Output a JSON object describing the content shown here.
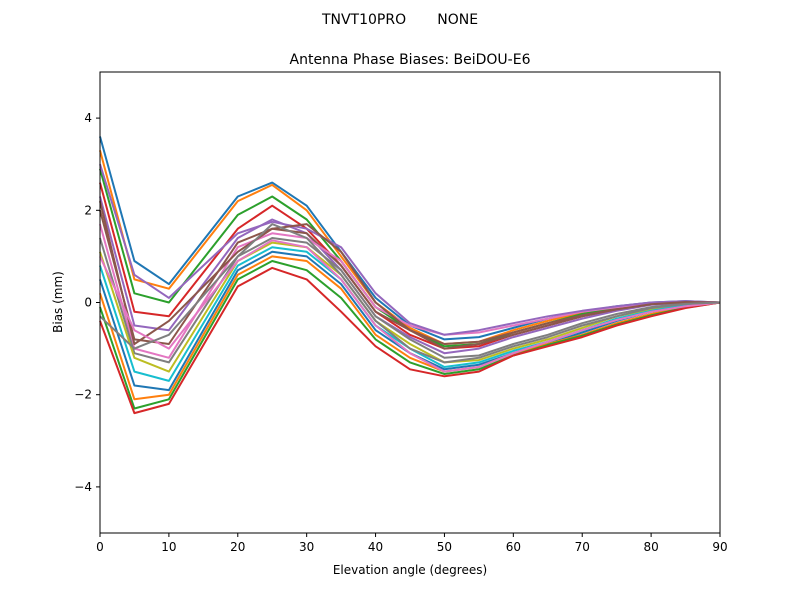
{
  "chart_data": {
    "type": "line",
    "suptitle": "TNVT10PRO       NONE",
    "title": "Antenna Phase Biases: BeiDOU-E6",
    "xlabel": "Elevation angle (degrees)",
    "ylabel": "Bias (mm)",
    "xlim": [
      0,
      90
    ],
    "ylim": [
      -5,
      5
    ],
    "xticks": [
      0,
      10,
      20,
      30,
      40,
      50,
      60,
      70,
      80,
      90
    ],
    "yticks": [
      -4,
      -2,
      0,
      2,
      4
    ],
    "ytick_labels": [
      "−4",
      "−2",
      "0",
      "2",
      "4"
    ],
    "grid": false,
    "colors": [
      "#1f77b4",
      "#ff7f0e",
      "#2ca02c",
      "#d62728",
      "#9467bd",
      "#8c564b",
      "#e377c2",
      "#7f7f7f",
      "#bcbd22",
      "#17becf"
    ],
    "x": [
      0,
      5,
      10,
      20,
      25,
      30,
      35,
      40,
      45,
      50,
      55,
      60,
      65,
      70,
      75,
      80,
      85,
      90
    ],
    "series": [
      {
        "values": [
          3.6,
          0.9,
          0.4,
          2.3,
          2.6,
          2.1,
          1.1,
          0.1,
          -0.5,
          -0.8,
          -0.75,
          -0.55,
          -0.35,
          -0.2,
          -0.08,
          0.0,
          0.03,
          0
        ]
      },
      {
        "values": [
          3.3,
          0.5,
          0.3,
          2.2,
          2.55,
          2.0,
          1.0,
          0.0,
          -0.55,
          -0.9,
          -0.85,
          -0.6,
          -0.4,
          -0.22,
          -0.1,
          -0.01,
          0.02,
          0
        ]
      },
      {
        "values": [
          2.9,
          0.2,
          0.0,
          1.9,
          2.3,
          1.8,
          0.9,
          -0.1,
          -0.6,
          -0.95,
          -0.9,
          -0.65,
          -0.45,
          -0.25,
          -0.12,
          -0.02,
          0.02,
          0
        ]
      },
      {
        "values": [
          2.6,
          -0.2,
          -0.3,
          1.6,
          2.1,
          1.6,
          0.8,
          -0.2,
          -0.7,
          -1.0,
          -0.95,
          -0.7,
          -0.5,
          -0.3,
          -0.15,
          -0.03,
          0.01,
          0
        ]
      },
      {
        "values": [
          2.3,
          -0.5,
          -0.6,
          1.4,
          1.8,
          1.5,
          0.7,
          -0.3,
          -0.75,
          -1.1,
          -1.0,
          -0.75,
          -0.55,
          -0.35,
          -0.18,
          -0.05,
          0.0,
          0
        ]
      },
      {
        "values": [
          2.0,
          -0.8,
          -0.9,
          1.3,
          1.6,
          1.5,
          0.8,
          -0.2,
          -0.6,
          -0.9,
          -0.85,
          -0.65,
          -0.45,
          -0.28,
          -0.14,
          -0.03,
          0.01,
          0
        ]
      },
      {
        "values": [
          1.7,
          -1.0,
          -1.2,
          1.2,
          1.5,
          1.4,
          0.9,
          -0.1,
          -0.5,
          -0.7,
          -0.65,
          -0.5,
          -0.35,
          -0.2,
          -0.1,
          -0.02,
          0.02,
          0
        ]
      },
      {
        "values": [
          1.4,
          -1.1,
          -1.3,
          1.0,
          1.4,
          1.3,
          0.7,
          -0.3,
          -0.8,
          -1.2,
          -1.15,
          -0.9,
          -0.7,
          -0.45,
          -0.25,
          -0.1,
          -0.02,
          0
        ]
      },
      {
        "values": [
          1.1,
          -1.2,
          -1.5,
          0.9,
          1.3,
          1.2,
          0.6,
          -0.4,
          -0.9,
          -1.3,
          -1.25,
          -1.0,
          -0.8,
          -0.55,
          -0.3,
          -0.15,
          -0.05,
          0
        ]
      },
      {
        "values": [
          0.8,
          -1.5,
          -1.7,
          0.8,
          1.2,
          1.1,
          0.5,
          -0.5,
          -1.0,
          -1.4,
          -1.3,
          -1.05,
          -0.85,
          -0.6,
          -0.35,
          -0.18,
          -0.06,
          0
        ]
      },
      {
        "values": [
          0.5,
          -1.8,
          -1.9,
          0.7,
          1.1,
          1.0,
          0.4,
          -0.6,
          -1.1,
          -1.45,
          -1.35,
          -1.1,
          -0.9,
          -0.65,
          -0.4,
          -0.2,
          -0.08,
          0
        ]
      },
      {
        "values": [
          0.2,
          -2.1,
          -2.0,
          0.6,
          1.0,
          0.9,
          0.3,
          -0.7,
          -1.2,
          -1.5,
          -1.4,
          -1.1,
          -0.9,
          -0.7,
          -0.45,
          -0.25,
          -0.1,
          0
        ]
      },
      {
        "values": [
          -0.1,
          -2.3,
          -2.1,
          0.5,
          0.9,
          0.7,
          0.1,
          -0.8,
          -1.3,
          -1.55,
          -1.45,
          -1.15,
          -0.92,
          -0.72,
          -0.48,
          -0.28,
          -0.11,
          0
        ]
      },
      {
        "values": [
          -0.4,
          -2.4,
          -2.2,
          0.35,
          0.75,
          0.5,
          -0.2,
          -0.95,
          -1.45,
          -1.6,
          -1.5,
          -1.15,
          -0.95,
          -0.75,
          -0.5,
          -0.3,
          -0.12,
          0
        ]
      },
      {
        "values": [
          3.0,
          0.6,
          0.1,
          1.5,
          1.75,
          1.6,
          1.2,
          0.2,
          -0.45,
          -0.7,
          -0.6,
          -0.45,
          -0.3,
          -0.18,
          -0.08,
          0.0,
          0.03,
          0
        ]
      },
      {
        "values": [
          2.2,
          -0.9,
          -0.4,
          1.1,
          1.6,
          1.7,
          1.1,
          0.0,
          -0.6,
          -1.0,
          -0.9,
          -0.7,
          -0.5,
          -0.3,
          -0.15,
          -0.04,
          0.01,
          0
        ]
      },
      {
        "values": [
          1.0,
          -0.6,
          -1.0,
          0.9,
          1.35,
          1.2,
          0.5,
          -0.5,
          -1.1,
          -1.5,
          -1.4,
          -1.1,
          -0.85,
          -0.6,
          -0.38,
          -0.2,
          -0.08,
          0
        ]
      },
      {
        "values": [
          -0.3,
          -1.0,
          -0.7,
          1.0,
          1.7,
          1.4,
          0.6,
          -0.4,
          -1.0,
          -1.3,
          -1.2,
          -0.95,
          -0.75,
          -0.5,
          -0.3,
          -0.12,
          -0.03,
          0
        ]
      }
    ]
  }
}
